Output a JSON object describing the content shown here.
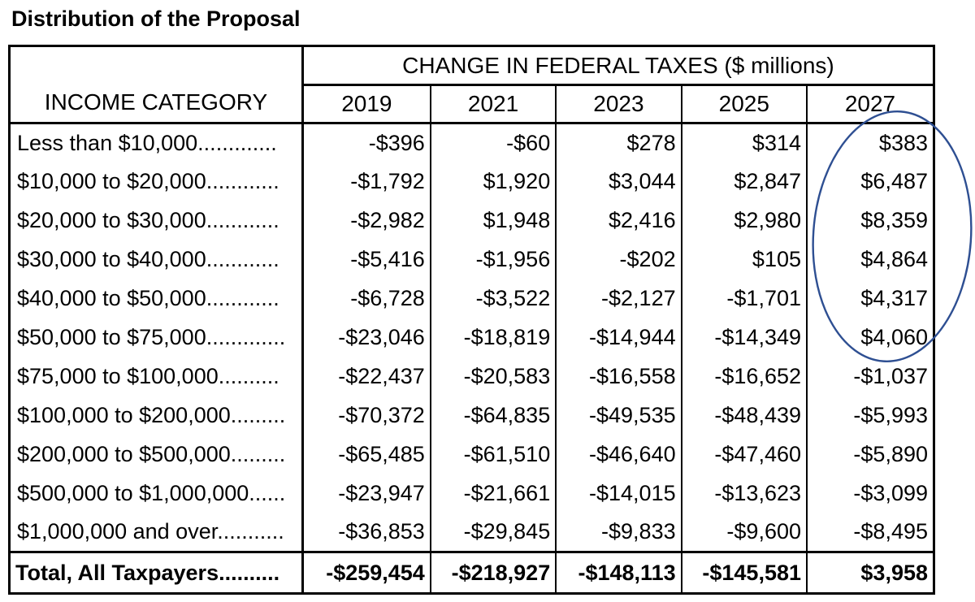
{
  "page": {
    "title": "Distribution of the Proposal"
  },
  "table": {
    "income_category_header": "INCOME CATEGORY",
    "group_header": "CHANGE IN FEDERAL TAXES ($ millions)",
    "years": [
      "2019",
      "2021",
      "2023",
      "2025",
      "2027"
    ],
    "rows": [
      {
        "category": "Less than $10,000.............",
        "values": [
          "-$396",
          "-$60",
          "$278",
          "$314",
          "$383"
        ]
      },
      {
        "category": "$10,000 to $20,000............",
        "values": [
          "-$1,792",
          "$1,920",
          "$3,044",
          "$2,847",
          "$6,487"
        ]
      },
      {
        "category": "$20,000 to $30,000............",
        "values": [
          "-$2,982",
          "$1,948",
          "$2,416",
          "$2,980",
          "$8,359"
        ]
      },
      {
        "category": "$30,000 to $40,000............",
        "values": [
          "-$5,416",
          "-$1,956",
          "-$202",
          "$105",
          "$4,864"
        ]
      },
      {
        "category": "$40,000 to $50,000............",
        "values": [
          "-$6,728",
          "-$3,522",
          "-$2,127",
          "-$1,701",
          "$4,317"
        ]
      },
      {
        "category": "$50,000 to $75,000.............",
        "values": [
          "-$23,046",
          "-$18,819",
          "-$14,944",
          "-$14,349",
          "$4,060"
        ]
      },
      {
        "category": "$75,000 to $100,000..........",
        "values": [
          "-$22,437",
          "-$20,583",
          "-$16,558",
          "-$16,652",
          "-$1,037"
        ]
      },
      {
        "category": "$100,000 to $200,000.........",
        "values": [
          "-$70,372",
          "-$64,835",
          "-$49,535",
          "-$48,439",
          "-$5,993"
        ]
      },
      {
        "category": "$200,000 to $500,000.........",
        "values": [
          "-$65,485",
          "-$61,510",
          "-$46,640",
          "-$47,460",
          "-$5,890"
        ]
      },
      {
        "category": "$500,000 to $1,000,000......",
        "values": [
          "-$23,947",
          "-$21,661",
          "-$14,015",
          "-$13,623",
          "-$3,099"
        ]
      },
      {
        "category": "$1,000,000 and over...........",
        "values": [
          "-$36,853",
          "-$29,845",
          "-$9,833",
          "-$9,600",
          "-$8,495"
        ]
      }
    ],
    "total_row": {
      "category": "Total, All Taxpayers..........",
      "values": [
        "-$259,454",
        "-$218,927",
        "-$148,113",
        "-$145,581",
        "$3,958"
      ]
    }
  },
  "annotation": {
    "shape": "ellipse",
    "highlights": "2027 column, rows Less than $10,000 through $50,000 to $75,000",
    "color": "#2e4f92"
  }
}
